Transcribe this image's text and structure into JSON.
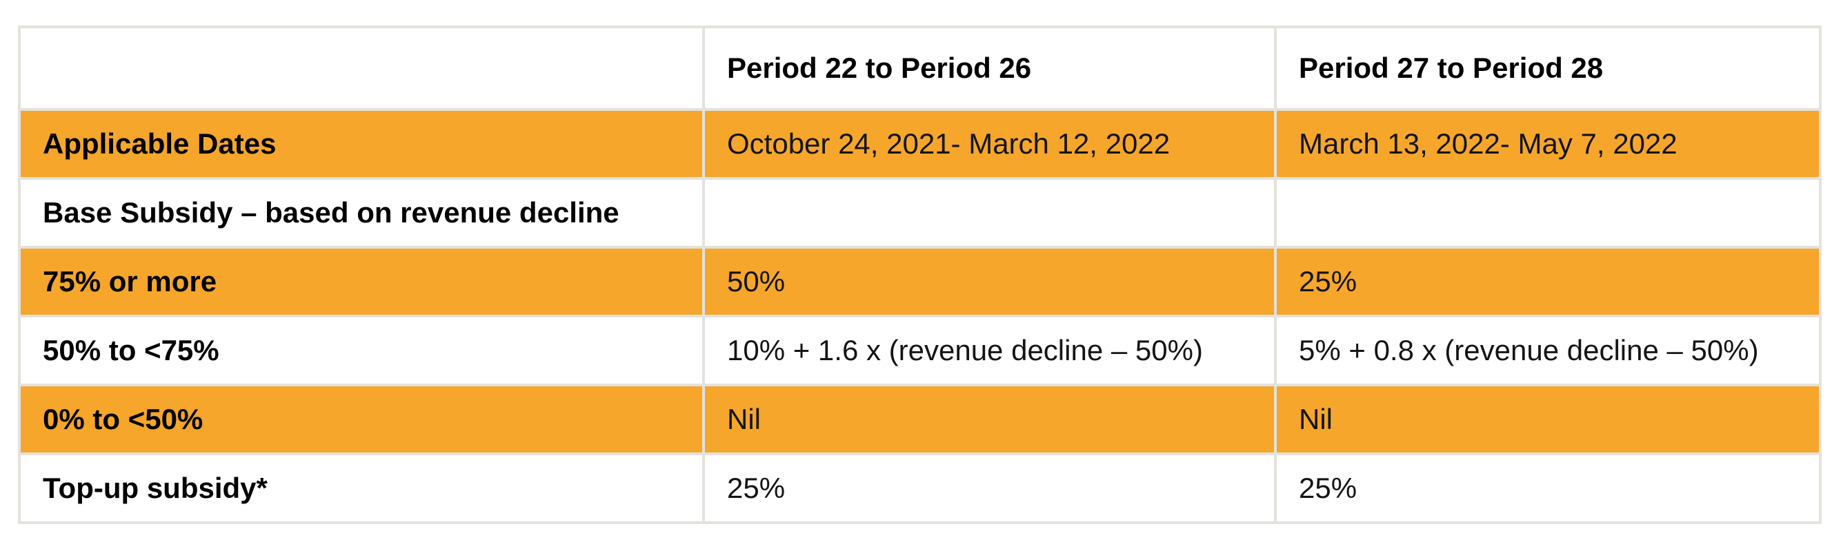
{
  "colors": {
    "highlight_orange": "#f5a62b",
    "grid_border": "#e4e2dd",
    "header_text": "#000000",
    "body_text": "#141414",
    "page_background": "#ffffff"
  },
  "table": {
    "header": {
      "col1": "",
      "col2": "Period 22 to Period 26",
      "col3": "Period 27 to Period 28"
    },
    "rows": [
      {
        "label": "Applicable Dates",
        "cells": [
          "October 24, 2021- March 12, 2022",
          "March 13, 2022- May 7, 2022"
        ]
      },
      {
        "label": "Base Subsidy – based on revenue decline",
        "cells": [
          "",
          ""
        ]
      },
      {
        "label": "75% or more",
        "cells": [
          "50%",
          "25%"
        ]
      },
      {
        "label": "50% to <75%",
        "cells": [
          "10% + 1.6 x (revenue decline – 50%)",
          "5% + 0.8 x (revenue decline – 50%)"
        ]
      },
      {
        "label": "0% to <50%",
        "cells": [
          "Nil",
          "Nil"
        ]
      },
      {
        "label": "Top-up subsidy*",
        "cells": [
          "25%",
          "25%"
        ]
      }
    ]
  }
}
